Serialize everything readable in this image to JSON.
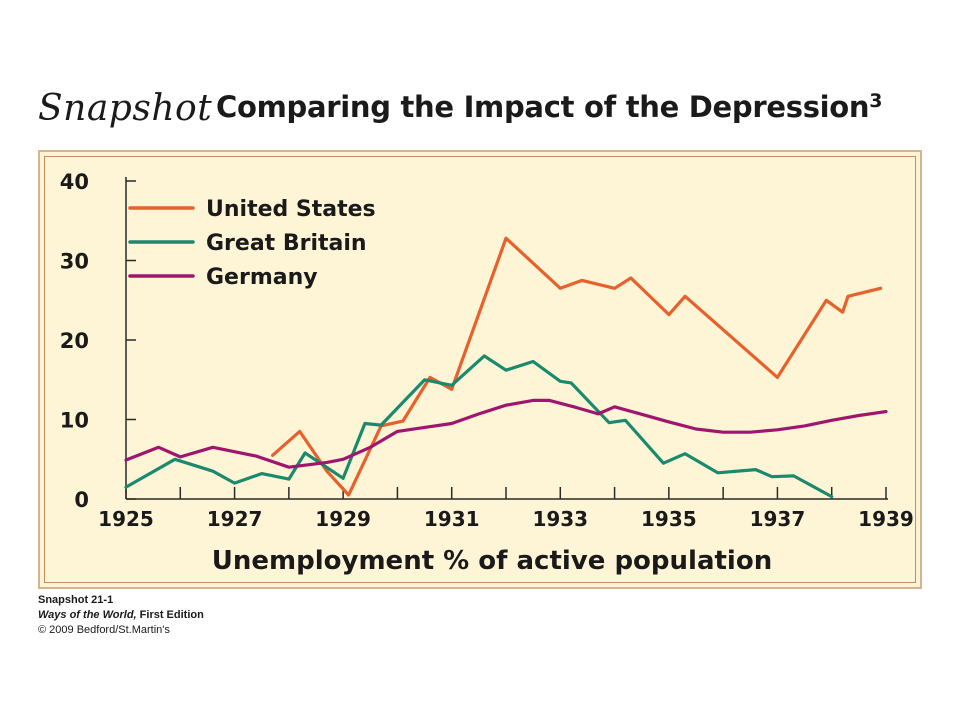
{
  "header": {
    "snapshot_label": "Snapshot",
    "title": "Comparing the Impact of the Depression",
    "title_superscript": "3"
  },
  "credit": {
    "line1": "Snapshot 21-1",
    "line2_book": "Ways of the World,",
    "line2_edition": " First Edition",
    "line3": "© 2009 Bedford/St.Martin's"
  },
  "chart_data": {
    "type": "line",
    "title": "Comparing the Impact of the Depression",
    "xlabel": "Unemployment % of active population",
    "ylabel": "",
    "xlim": [
      1925,
      1939
    ],
    "ylim": [
      0,
      40
    ],
    "x_ticks": [
      "1925",
      "1927",
      "1929",
      "1931",
      "1933",
      "1935",
      "1937",
      "1939"
    ],
    "y_ticks": [
      "0",
      "10",
      "20",
      "30",
      "40"
    ],
    "legend_position": "top-left",
    "grid": false,
    "series": [
      {
        "name": "United States",
        "color": "#e8602c",
        "points": [
          [
            1927.7,
            5.5
          ],
          [
            1928.2,
            8.5
          ],
          [
            1928.7,
            3.5
          ],
          [
            1929.1,
            0.5
          ],
          [
            1929.7,
            9.2
          ],
          [
            1930.1,
            9.8
          ],
          [
            1930.6,
            15.3
          ],
          [
            1931.0,
            13.8
          ],
          [
            1932.0,
            32.8
          ],
          [
            1933.0,
            26.5
          ],
          [
            1933.4,
            27.5
          ],
          [
            1934.0,
            26.5
          ],
          [
            1934.3,
            27.8
          ],
          [
            1935.0,
            23.2
          ],
          [
            1935.3,
            25.5
          ],
          [
            1937.0,
            15.3
          ],
          [
            1937.9,
            25.0
          ],
          [
            1938.2,
            23.5
          ],
          [
            1938.3,
            25.5
          ],
          [
            1938.9,
            26.5
          ]
        ]
      },
      {
        "name": "Great Britain",
        "color": "#1a8a6e",
        "points": [
          [
            1925.0,
            1.5
          ],
          [
            1925.9,
            5.0
          ],
          [
            1926.6,
            3.5
          ],
          [
            1927.0,
            2.0
          ],
          [
            1927.5,
            3.2
          ],
          [
            1928.0,
            2.5
          ],
          [
            1928.3,
            5.8
          ],
          [
            1929.0,
            2.6
          ],
          [
            1929.4,
            9.5
          ],
          [
            1929.7,
            9.3
          ],
          [
            1930.5,
            15.0
          ],
          [
            1931.0,
            14.3
          ],
          [
            1931.6,
            18.0
          ],
          [
            1932.0,
            16.2
          ],
          [
            1932.5,
            17.3
          ],
          [
            1933.0,
            14.8
          ],
          [
            1933.2,
            14.6
          ],
          [
            1933.9,
            9.6
          ],
          [
            1934.2,
            9.9
          ],
          [
            1934.9,
            4.5
          ],
          [
            1935.3,
            5.7
          ],
          [
            1935.9,
            3.3
          ],
          [
            1936.6,
            3.7
          ],
          [
            1936.9,
            2.8
          ],
          [
            1937.3,
            2.9
          ],
          [
            1938.0,
            0.3
          ]
        ]
      },
      {
        "name": "Germany",
        "color": "#a0166e",
        "points": [
          [
            1925.0,
            4.9
          ],
          [
            1925.6,
            6.5
          ],
          [
            1926.0,
            5.3
          ],
          [
            1926.6,
            6.5
          ],
          [
            1927.4,
            5.4
          ],
          [
            1928.0,
            4.0
          ],
          [
            1928.7,
            4.6
          ],
          [
            1929.0,
            5.0
          ],
          [
            1929.5,
            6.5
          ],
          [
            1930.0,
            8.5
          ],
          [
            1930.5,
            9.0
          ],
          [
            1931.0,
            9.5
          ],
          [
            1931.5,
            10.7
          ],
          [
            1932.0,
            11.8
          ],
          [
            1932.5,
            12.4
          ],
          [
            1932.8,
            12.4
          ],
          [
            1933.3,
            11.5
          ],
          [
            1933.7,
            10.7
          ],
          [
            1934.0,
            11.6
          ],
          [
            1935.0,
            9.7
          ],
          [
            1935.5,
            8.8
          ],
          [
            1936.0,
            8.4
          ],
          [
            1936.5,
            8.4
          ],
          [
            1937.0,
            8.7
          ],
          [
            1937.5,
            9.2
          ],
          [
            1938.0,
            9.9
          ],
          [
            1938.5,
            10.5
          ],
          [
            1939.0,
            11.0
          ]
        ]
      }
    ]
  }
}
